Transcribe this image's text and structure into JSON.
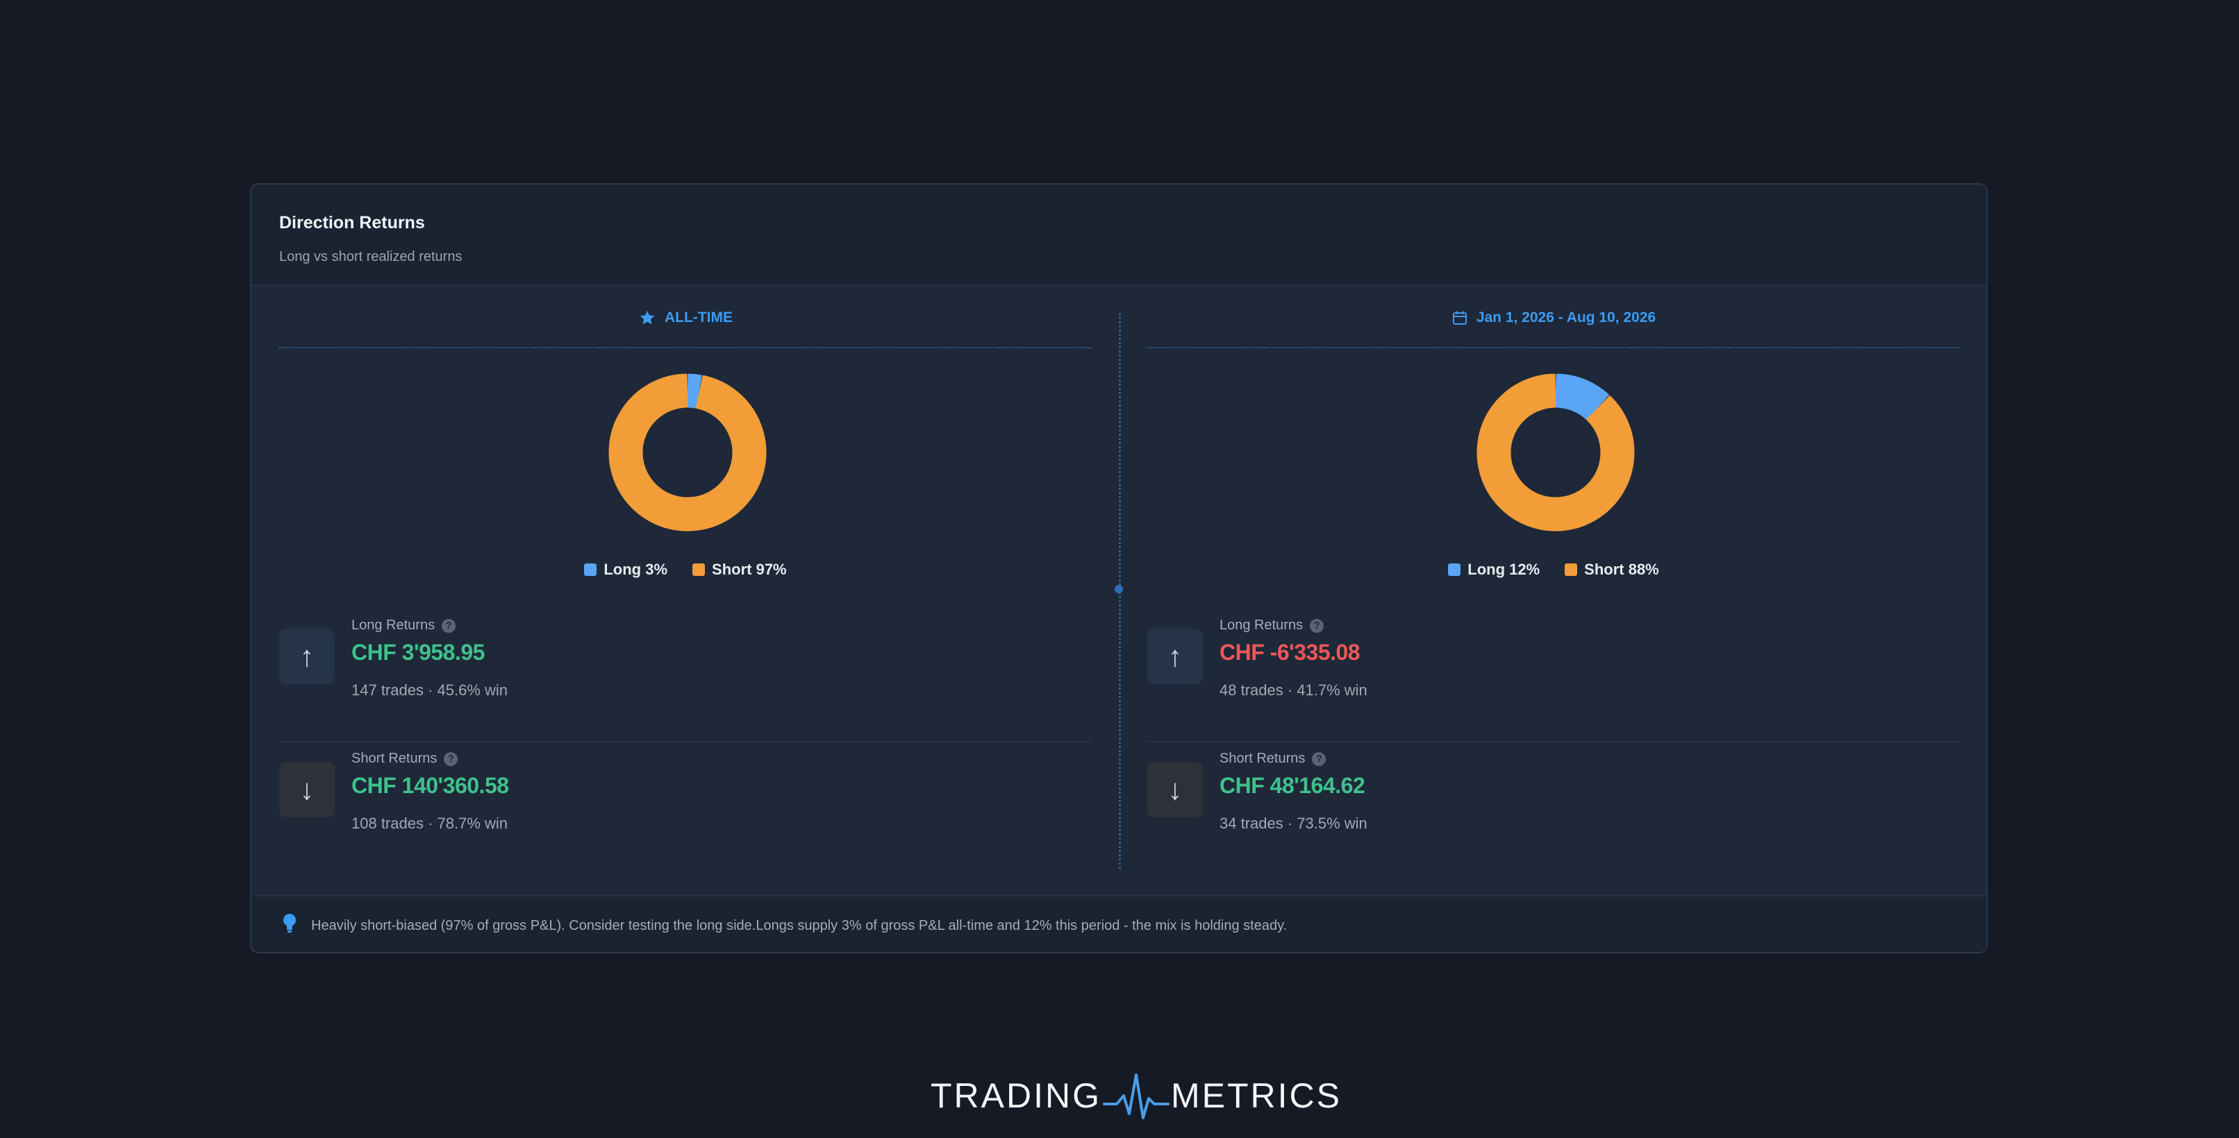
{
  "card": {
    "title": "Direction Returns",
    "subtitle": "Long vs short realized returns"
  },
  "panels": [
    {
      "header_icon": "star-icon",
      "header_label": "ALL-TIME",
      "legend": [
        {
          "label": "Long 3%",
          "color": "#5aa5f5"
        },
        {
          "label": "Short 97%",
          "color": "#f29d38"
        }
      ],
      "long": {
        "label": "Long Returns",
        "value": "CHF 3'958.95",
        "sub": "147 trades · 45.6% win",
        "sign": "pos"
      },
      "short": {
        "label": "Short Returns",
        "value": "CHF 140'360.58",
        "sub": "108 trades · 78.7% win",
        "sign": "pos"
      }
    },
    {
      "header_icon": "calendar-icon",
      "header_label": "Jan 1, 2026 - Aug 10, 2026",
      "legend": [
        {
          "label": "Long 12%",
          "color": "#5aa5f5"
        },
        {
          "label": "Short 88%",
          "color": "#f29d38"
        }
      ],
      "long": {
        "label": "Long Returns",
        "value": "CHF -6'335.08",
        "sub": "48 trades · 41.7% win",
        "sign": "neg"
      },
      "short": {
        "label": "Short Returns",
        "value": "CHF 48'164.62",
        "sub": "34 trades · 73.5% win",
        "sign": "pos"
      }
    }
  ],
  "chart_data": [
    {
      "type": "pie",
      "categories": [
        "Long",
        "Short"
      ],
      "values": [
        3,
        97
      ],
      "colors": [
        "#5aa5f5",
        "#f29d38"
      ],
      "legend": "bottom"
    },
    {
      "type": "pie",
      "categories": [
        "Long",
        "Short"
      ],
      "values": [
        12,
        88
      ],
      "colors": [
        "#5aa5f5",
        "#f29d38"
      ],
      "legend": "bottom"
    }
  ],
  "footer": {
    "icon": "lightbulb-icon",
    "text": "Heavily short-biased (97% of gross P&L). Consider testing the long side.Longs supply 3% of gross P&L all-time and 12% this period - the mix is holding steady."
  },
  "logo": {
    "left": "TRADING",
    "right": "METRICS"
  }
}
